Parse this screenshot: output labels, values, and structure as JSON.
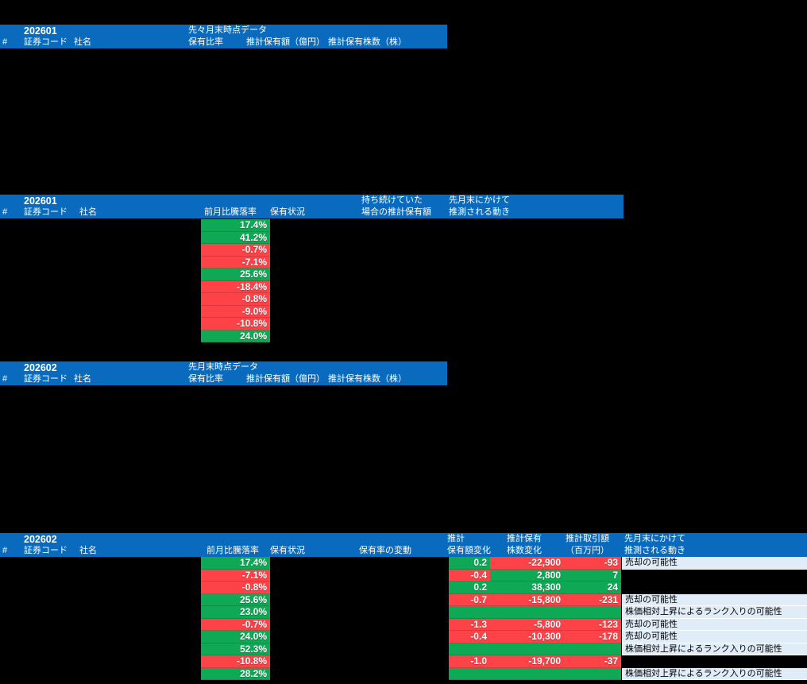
{
  "colors": {
    "background": "#000000",
    "header_blue": "#0a6bbe",
    "positive_green": "#0fa854",
    "negative_red": "#fd4248",
    "note_bg": "#e1ecf9",
    "header_text": "#ffffff",
    "cell_text": "#ffffff",
    "note_text": "#000000"
  },
  "tables": {
    "s1": {
      "period": "202601",
      "snapshot_label": "先々月末時点データ",
      "col_index": "#",
      "col_code": "証券コード",
      "col_name": "社名",
      "col_ratio": "保有比率",
      "col_est_value": "推計保有額（億円）",
      "col_est_shares": "推計保有株数（株）"
    },
    "s2": {
      "period": "202601",
      "col_index": "#",
      "col_code": "証券コード",
      "col_name": "社名",
      "col_pct": "前月比騰落率",
      "col_status": "保有状況",
      "col_held_l1": "持ち続けていた",
      "col_held_l2": "場合の推計保有額",
      "col_move_l1": "先月末にかけて",
      "col_move_l2": "推測される動き",
      "rows": [
        {
          "pct": "17.4%",
          "tone": "pos"
        },
        {
          "pct": "41.2%",
          "tone": "pos"
        },
        {
          "pct": "-0.7%",
          "tone": "neg"
        },
        {
          "pct": "-7.1%",
          "tone": "neg"
        },
        {
          "pct": "25.6%",
          "tone": "pos"
        },
        {
          "pct": "-18.4%",
          "tone": "neg"
        },
        {
          "pct": "-0.8%",
          "tone": "neg"
        },
        {
          "pct": "-9.0%",
          "tone": "neg"
        },
        {
          "pct": "-10.8%",
          "tone": "neg"
        },
        {
          "pct": "24.0%",
          "tone": "pos"
        }
      ]
    },
    "s3": {
      "period": "202602",
      "snapshot_label": "先月末時点データ",
      "col_index": "#",
      "col_code": "証券コード",
      "col_name": "社名",
      "col_ratio": "保有比率",
      "col_est_value": "推計保有額（億円）",
      "col_est_shares": "推計保有株数（株）"
    },
    "s4": {
      "period": "202602",
      "col_index": "#",
      "col_code": "証券コード",
      "col_name": "社名",
      "col_pct": "前月比騰落率",
      "col_status": "保有状況",
      "col_ratio_change": "保有率の変動",
      "col_amt_l1": "推計",
      "col_amt_l2": "保有額変化",
      "col_sh_l1": "推計保有",
      "col_sh_l2": "株数変化",
      "col_tx_l1": "推計取引額",
      "col_tx_l2": "（百万円）",
      "col_move_l1": "先月末にかけて",
      "col_move_l2": "推測される動き",
      "rows": [
        {
          "pct": "17.4%",
          "pct_tone": "pos",
          "amt": "0.2",
          "amt_tone": "pos",
          "shares": "-22,900",
          "shares_tone": "neg",
          "trade": "-93",
          "trade_tone": "neg",
          "note": "売却の可能性"
        },
        {
          "pct": "-7.1%",
          "pct_tone": "neg",
          "amt": "-0.4",
          "amt_tone": "neg",
          "shares": "2,800",
          "shares_tone": "pos",
          "trade": "7",
          "trade_tone": "pos",
          "note": ""
        },
        {
          "pct": "-0.8%",
          "pct_tone": "neg",
          "amt": "0.2",
          "amt_tone": "pos",
          "shares": "38,300",
          "shares_tone": "pos",
          "trade": "24",
          "trade_tone": "pos",
          "note": ""
        },
        {
          "pct": "25.6%",
          "pct_tone": "pos",
          "amt": "-0.7",
          "amt_tone": "neg",
          "shares": "-15,800",
          "shares_tone": "neg",
          "trade": "-231",
          "trade_tone": "neg",
          "note": "売却の可能性"
        },
        {
          "pct": "23.0%",
          "pct_tone": "pos",
          "amt": "",
          "amt_tone": "pos",
          "shares": "",
          "shares_tone": "pos",
          "trade": "",
          "trade_tone": "pos",
          "note": "株価相対上昇によるランク入りの可能性"
        },
        {
          "pct": "-0.7%",
          "pct_tone": "neg",
          "amt": "-1.3",
          "amt_tone": "neg",
          "shares": "-5,800",
          "shares_tone": "neg",
          "trade": "-123",
          "trade_tone": "neg",
          "note": "売却の可能性"
        },
        {
          "pct": "24.0%",
          "pct_tone": "pos",
          "amt": "-0.4",
          "amt_tone": "neg",
          "shares": "-10,300",
          "shares_tone": "neg",
          "trade": "-178",
          "trade_tone": "neg",
          "note": "売却の可能性"
        },
        {
          "pct": "52.3%",
          "pct_tone": "pos",
          "amt": "",
          "amt_tone": "pos",
          "shares": "",
          "shares_tone": "pos",
          "trade": "",
          "trade_tone": "pos",
          "note": "株価相対上昇によるランク入りの可能性"
        },
        {
          "pct": "-10.8%",
          "pct_tone": "neg",
          "amt": "-1.0",
          "amt_tone": "neg",
          "shares": "-19,700",
          "shares_tone": "neg",
          "trade": "-37",
          "trade_tone": "neg",
          "note": ""
        },
        {
          "pct": "28.2%",
          "pct_tone": "pos",
          "amt": "",
          "amt_tone": "pos",
          "shares": "",
          "shares_tone": "pos",
          "trade": "",
          "trade_tone": "pos",
          "note": "株価相対上昇によるランク入りの可能性"
        }
      ]
    }
  }
}
